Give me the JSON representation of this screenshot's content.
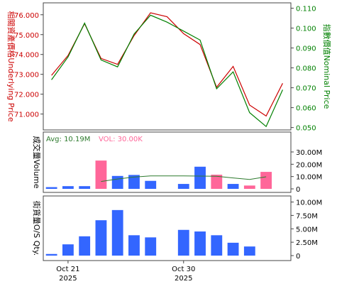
{
  "chart_data": [
    {
      "type": "line",
      "ylabel_left": "相關資產價格Underlying Price",
      "ylabel_right": "指數價值Nominal Price",
      "y_left_ticks": [
        "76.000",
        "75.000",
        "74.000",
        "73.000",
        "72.000",
        "71.000"
      ],
      "y_right_ticks": [
        "0.110",
        "0.100",
        "0.090",
        "0.080",
        "0.070",
        "0.060",
        "0.050"
      ],
      "ylim_left": [
        70.2,
        76.6
      ],
      "ylim_right": [
        0.0488,
        0.1127
      ],
      "x_index": [
        0,
        1,
        2,
        3,
        4,
        5,
        6,
        7,
        8,
        9,
        10,
        11,
        12,
        13,
        14
      ],
      "series": [
        {
          "name": "Underlying Price",
          "axis": "left",
          "color": "#cc0000",
          "values": [
            72.95,
            73.95,
            75.55,
            73.8,
            73.5,
            74.95,
            76.1,
            75.9,
            75.05,
            74.5,
            72.35,
            73.4,
            71.45,
            70.9,
            72.55
          ]
        },
        {
          "name": "Nominal Price",
          "axis": "right",
          "color": "#008000",
          "values": [
            0.074,
            0.0855,
            0.1025,
            0.084,
            0.0805,
            0.097,
            0.1065,
            0.103,
            0.0985,
            0.094,
            0.0695,
            0.078,
            0.0575,
            0.0505,
            0.069
          ]
        }
      ]
    },
    {
      "type": "bar",
      "ylabel": "成交量Volume",
      "avg_label": "Avg: 10.19M",
      "vol_label": "VOL: 30.00K",
      "y_ticks": [
        "30.00M",
        "20.00M",
        "10.00M",
        "0"
      ],
      "ylim": [
        0,
        30000000
      ],
      "up_color": "#3366ff",
      "down_color": "#ff6699",
      "avg_color": "#2d7a2d",
      "values": [
        1400000,
        2200000,
        2200000,
        23000000,
        10500000,
        11300000,
        6500000,
        0,
        4000000,
        18000000,
        11500000,
        4000000,
        2700000,
        13800000
      ],
      "colors": [
        "up",
        "up",
        "up",
        "down",
        "up",
        "up",
        "up",
        "up",
        "up",
        "up",
        "down",
        "up",
        "down",
        "down"
      ],
      "avg_line": [
        null,
        null,
        null,
        6000000,
        8000000,
        9600000,
        10500000,
        10500000,
        10500000,
        10400000,
        10200000,
        8900000,
        7700000,
        9800000
      ]
    },
    {
      "type": "bar",
      "ylabel": "街貨量O/S Qty.",
      "y_ticks": [
        "10.00M",
        "7.50M",
        "5.00M",
        "2.50M",
        "0"
      ],
      "ylim": [
        0,
        10600000
      ],
      "color": "#3366ff",
      "values": [
        300000,
        2100000,
        3600000,
        6600000,
        8500000,
        3800000,
        3400000,
        0,
        4800000,
        4500000,
        3800000,
        2400000,
        1700000,
        0
      ],
      "x_ticks": [
        {
          "index": 1,
          "label": "Oct 21",
          "year": "2025"
        },
        {
          "index": 8,
          "label": "Oct 30",
          "year": "2025"
        }
      ]
    }
  ]
}
